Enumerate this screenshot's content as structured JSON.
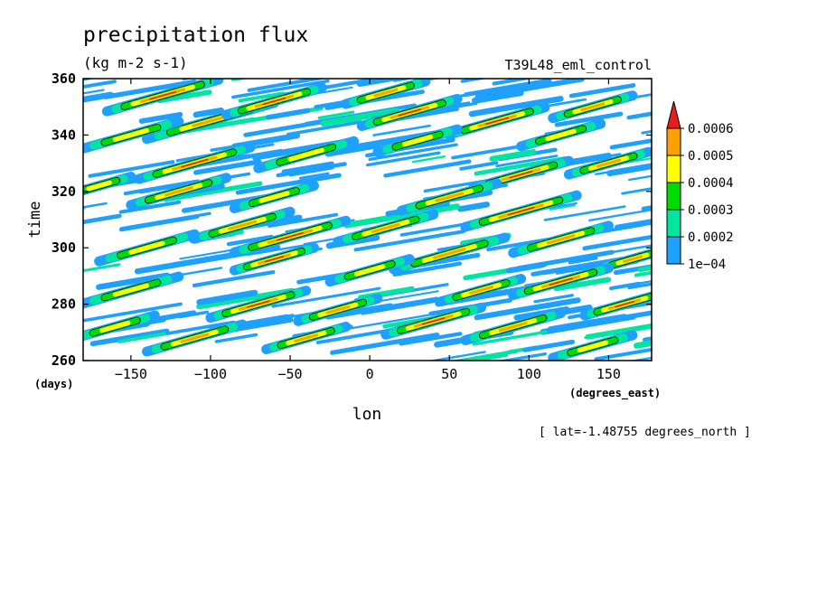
{
  "chart_data": {
    "type": "heatmap",
    "title": "precipitation flux",
    "units": "(kg m-2 s-1)",
    "run_label": "T39L48_eml_control",
    "xlabel": "lon",
    "xunits": "(degrees_east)",
    "ylabel": "time",
    "yunits": "(days)",
    "footer": "[ lat=-1.48755 degrees_north ]",
    "xlim": [
      -180,
      177
    ],
    "ylim": [
      260,
      360
    ],
    "x_ticks": [
      -150,
      -100,
      -50,
      0,
      50,
      100,
      150
    ],
    "y_ticks": [
      260,
      280,
      300,
      320,
      340,
      360
    ],
    "x_tick_labels": [
      "−150",
      "−100",
      "−50",
      "0",
      "50",
      "100",
      "150"
    ],
    "y_tick_labels": [
      "260",
      "280",
      "300",
      "320",
      "340",
      "360"
    ],
    "colorbar": {
      "levels": [
        0.0001,
        0.0002,
        0.0003,
        0.0004,
        0.0005,
        0.0006
      ],
      "level_labels": [
        "1e−04",
        "0.0002",
        "0.0003",
        "0.0004",
        "0.0005",
        "0.0006"
      ],
      "colors": [
        "#1ea0ff",
        "#00e6a0",
        "#00dc00",
        "#ffff00",
        "#ffa000",
        "#e61e1e"
      ],
      "extend": "max"
    },
    "pattern": "Eastward-propagating precipitation streaks (slanted bands tilted toward increasing longitude with time), widespread 1e-04 background with embedded maxima exceeding 0.0006 kg m-2 s-1",
    "features": [
      {
        "lon": -130,
        "time": 354,
        "len": 70,
        "peak": 0.0006
      },
      {
        "lon": -100,
        "time": 345,
        "len": 80,
        "peak": 0.0005
      },
      {
        "lon": -60,
        "time": 352,
        "len": 60,
        "peak": 0.0006
      },
      {
        "lon": 10,
        "time": 355,
        "len": 50,
        "peak": 0.0005
      },
      {
        "lon": 25,
        "time": 348,
        "len": 60,
        "peak": 0.0006
      },
      {
        "lon": 80,
        "time": 345,
        "len": 60,
        "peak": 0.0006
      },
      {
        "lon": 140,
        "time": 350,
        "len": 50,
        "peak": 0.0005
      },
      {
        "lon": -150,
        "time": 340,
        "len": 60,
        "peak": 0.0004
      },
      {
        "lon": -110,
        "time": 330,
        "len": 70,
        "peak": 0.0006
      },
      {
        "lon": -40,
        "time": 333,
        "len": 60,
        "peak": 0.0004
      },
      {
        "lon": 30,
        "time": 338,
        "len": 50,
        "peak": 0.0004
      },
      {
        "lon": 95,
        "time": 326,
        "len": 60,
        "peak": 0.0006
      },
      {
        "lon": 150,
        "time": 330,
        "len": 50,
        "peak": 0.0005
      },
      {
        "lon": -120,
        "time": 320,
        "len": 60,
        "peak": 0.0005
      },
      {
        "lon": -60,
        "time": 318,
        "len": 50,
        "peak": 0.0004
      },
      {
        "lon": 50,
        "time": 318,
        "len": 60,
        "peak": 0.0005
      },
      {
        "lon": 95,
        "time": 313,
        "len": 70,
        "peak": 0.0006
      },
      {
        "lon": -80,
        "time": 308,
        "len": 60,
        "peak": 0.0005
      },
      {
        "lon": -50,
        "time": 304,
        "len": 70,
        "peak": 0.0006
      },
      {
        "lon": 10,
        "time": 307,
        "len": 60,
        "peak": 0.0005
      },
      {
        "lon": 50,
        "time": 298,
        "len": 70,
        "peak": 0.0005
      },
      {
        "lon": 120,
        "time": 303,
        "len": 60,
        "peak": 0.0005
      },
      {
        "lon": 165,
        "time": 296,
        "len": 40,
        "peak": 0.0005
      },
      {
        "lon": -140,
        "time": 300,
        "len": 60,
        "peak": 0.0004
      },
      {
        "lon": -60,
        "time": 296,
        "len": 50,
        "peak": 0.0006
      },
      {
        "lon": 0,
        "time": 292,
        "len": 50,
        "peak": 0.0004
      },
      {
        "lon": 120,
        "time": 288,
        "len": 60,
        "peak": 0.0006
      },
      {
        "lon": 70,
        "time": 285,
        "len": 50,
        "peak": 0.0005
      },
      {
        "lon": 160,
        "time": 280,
        "len": 50,
        "peak": 0.0006
      },
      {
        "lon": -150,
        "time": 285,
        "len": 60,
        "peak": 0.0004
      },
      {
        "lon": -70,
        "time": 280,
        "len": 60,
        "peak": 0.0006
      },
      {
        "lon": -20,
        "time": 278,
        "len": 50,
        "peak": 0.0005
      },
      {
        "lon": 40,
        "time": 274,
        "len": 60,
        "peak": 0.0006
      },
      {
        "lon": 90,
        "time": 272,
        "len": 60,
        "peak": 0.0005
      },
      {
        "lon": -110,
        "time": 268,
        "len": 60,
        "peak": 0.0005
      },
      {
        "lon": -40,
        "time": 268,
        "len": 50,
        "peak": 0.0005
      },
      {
        "lon": -160,
        "time": 272,
        "len": 50,
        "peak": 0.0004
      },
      {
        "lon": 140,
        "time": 265,
        "len": 50,
        "peak": 0.0004
      },
      {
        "lon": -170,
        "time": 322,
        "len": 40,
        "peak": 0.0004
      },
      {
        "lon": 120,
        "time": 340,
        "len": 50,
        "peak": 0.0004
      }
    ]
  }
}
